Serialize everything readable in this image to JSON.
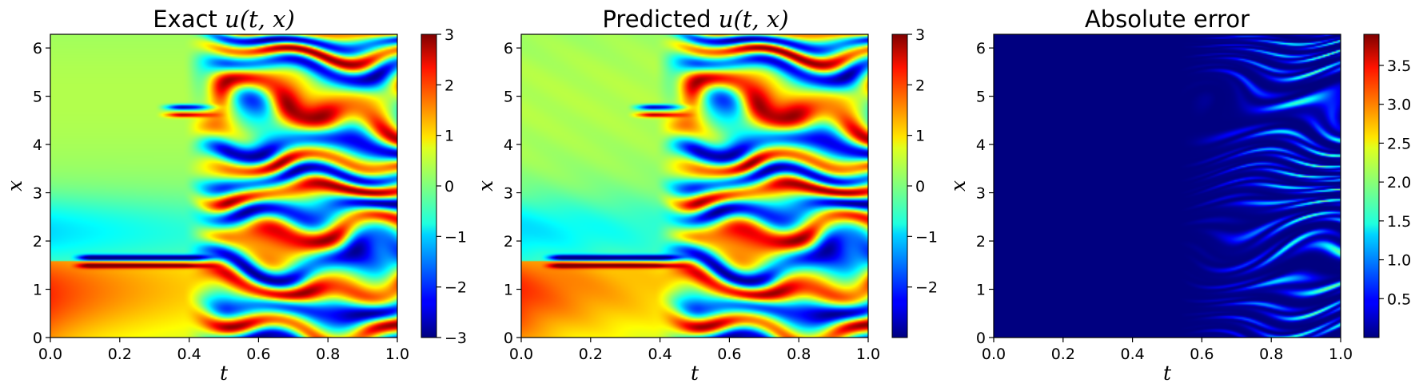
{
  "chart_data": [
    {
      "type": "heatmap",
      "title_prefix": "Exact ",
      "title_math": "u(t, x)",
      "xlabel": "t",
      "ylabel": "x",
      "xlim": [
        0.0,
        1.0
      ],
      "ylim": [
        0.0,
        6.283
      ],
      "x_ticks": [
        "0.0",
        "0.2",
        "0.4",
        "0.6",
        "0.8",
        "1.0"
      ],
      "y_ticks": [
        "0",
        "1",
        "2",
        "3",
        "4",
        "5",
        "6"
      ],
      "colorbar": {
        "colormap": "jet",
        "range": [
          -3.0,
          3.0
        ],
        "ticks": [
          "−3",
          "−2",
          "−1",
          "0",
          "1",
          "2",
          "3"
        ]
      }
    },
    {
      "type": "heatmap",
      "title_prefix": "Predicted ",
      "title_math": "u(t, x)",
      "xlabel": "t",
      "ylabel": "x",
      "xlim": [
        0.0,
        1.0
      ],
      "ylim": [
        0.0,
        6.283
      ],
      "x_ticks": [
        "0.0",
        "0.2",
        "0.4",
        "0.6",
        "0.8",
        "1.0"
      ],
      "y_ticks": [
        "0",
        "1",
        "2",
        "3",
        "4",
        "5",
        "6"
      ],
      "colorbar": {
        "colormap": "jet",
        "range": [
          -3.0,
          3.0
        ],
        "ticks": [
          "−2",
          "−1",
          "0",
          "1",
          "2",
          "3"
        ]
      }
    },
    {
      "type": "heatmap",
      "title_prefix": "Absolute error",
      "title_math": "",
      "xlabel": "t",
      "ylabel": "x",
      "xlim": [
        0.0,
        1.0
      ],
      "ylim": [
        0.0,
        6.283
      ],
      "x_ticks": [
        "0.0",
        "0.2",
        "0.4",
        "0.6",
        "0.8",
        "1.0"
      ],
      "y_ticks": [
        "0",
        "1",
        "2",
        "3",
        "4",
        "5",
        "6"
      ],
      "colorbar": {
        "colormap": "jet",
        "range": [
          0.0,
          3.9
        ],
        "ticks": [
          "0.5",
          "1.0",
          "1.5",
          "2.0",
          "2.5",
          "3.0",
          "3.5"
        ]
      }
    }
  ]
}
